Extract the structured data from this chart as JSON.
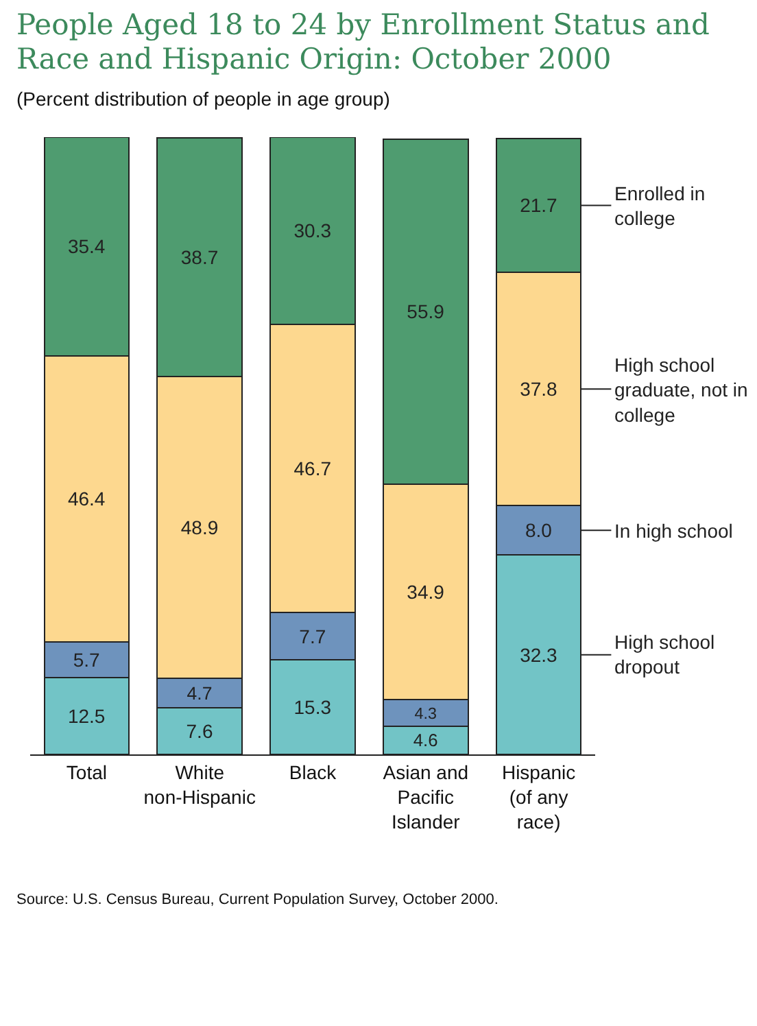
{
  "chart_data": {
    "type": "bar",
    "title": "People Aged 18 to 24 by Enrollment Status and Race and Hispanic Origin: October 2000",
    "subtitle": "(Percent distribution of people in age group)",
    "categories": [
      "Total",
      "White non-Hispanic",
      "Black",
      "Asian and Pacific Islander",
      "Hispanic (of any race)"
    ],
    "stacked": true,
    "legend": "right",
    "grid": false,
    "tick_labels": "x",
    "ylim": [
      0,
      100
    ],
    "series": [
      {
        "name": "High school dropout",
        "color": "#72c4c6",
        "values": [
          12.5,
          7.6,
          15.3,
          4.6,
          32.3
        ],
        "value_labels": [
          "12.5",
          "7.6",
          "15.3",
          "4.6",
          "32.3"
        ]
      },
      {
        "name": "In high school",
        "color": "#6e93bd",
        "values": [
          5.7,
          4.7,
          7.7,
          4.3,
          8.0
        ],
        "value_labels": [
          "5.7",
          "4.7",
          "7.7",
          "4.3",
          "8.0"
        ]
      },
      {
        "name": "High school graduate, not in college",
        "color": "#fdd88f",
        "values": [
          46.4,
          48.9,
          46.7,
          34.9,
          37.8
        ],
        "value_labels": [
          "46.4",
          "48.9",
          "46.7",
          "34.9",
          "37.8"
        ]
      },
      {
        "name": "Enrolled in college",
        "color": "#4f9c70",
        "values": [
          35.4,
          38.7,
          30.3,
          55.9,
          21.7
        ],
        "value_labels": [
          "35.4",
          "38.7",
          "30.3",
          "55.9",
          "21.7"
        ]
      }
    ],
    "annotations": [
      "Source: U.S. Census Bureau, Current Population Survey, October 2000."
    ]
  }
}
